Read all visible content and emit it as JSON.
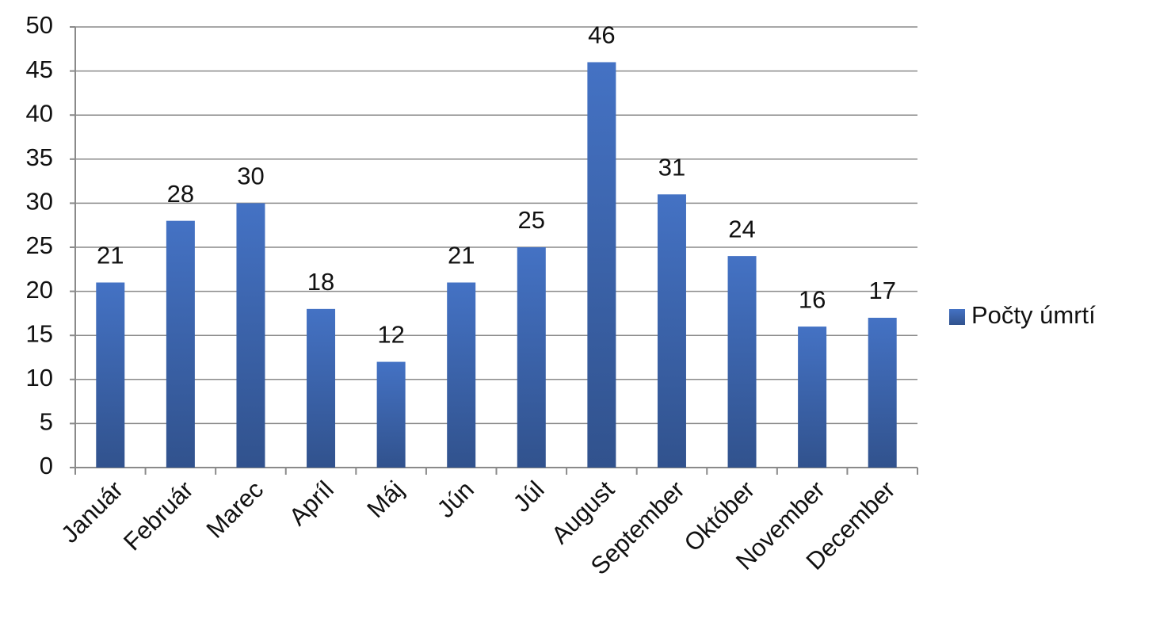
{
  "chart_data": {
    "type": "bar",
    "categories": [
      "Január",
      "Február",
      "Marec",
      "Apríl",
      "Máj",
      "Jún",
      "Júl",
      "August",
      "September",
      "Október",
      "November",
      "December"
    ],
    "series": [
      {
        "name": "Počty úmrtí",
        "color": "#4472c4",
        "values": [
          21,
          28,
          30,
          18,
          12,
          21,
          25,
          46,
          31,
          24,
          16,
          17
        ]
      }
    ],
    "ylim": [
      0,
      50
    ],
    "yticks": [
      0,
      5,
      10,
      15,
      20,
      25,
      30,
      35,
      40,
      45,
      50
    ],
    "grid": true,
    "legend": "right",
    "data_labels": true
  }
}
